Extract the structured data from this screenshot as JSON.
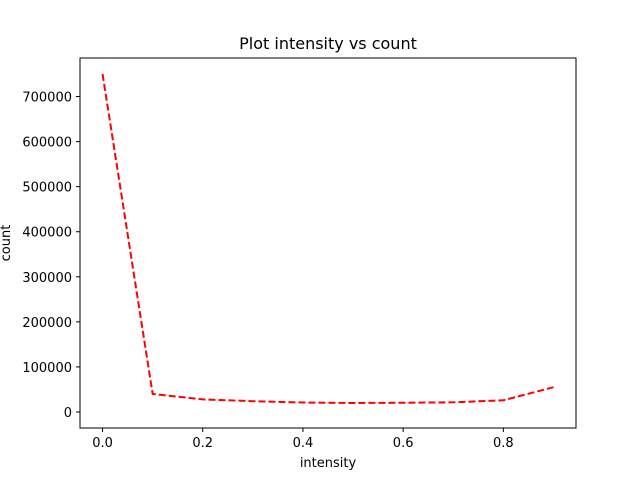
{
  "chart_data": {
    "type": "line",
    "title": "Plot intensity vs count",
    "xlabel": "intensity",
    "ylabel": "count",
    "xlim": [
      -0.045,
      0.945
    ],
    "ylim": [
      -35500,
      785500
    ],
    "xticks": [
      0.0,
      0.2,
      0.4,
      0.6,
      0.8
    ],
    "xtick_labels": [
      "0.0",
      "0.2",
      "0.4",
      "0.6",
      "0.8"
    ],
    "yticks": [
      0,
      100000,
      200000,
      300000,
      400000,
      500000,
      600000,
      700000
    ],
    "ytick_labels": [
      "0",
      "100000",
      "200000",
      "300000",
      "400000",
      "500000",
      "600000",
      "700000"
    ],
    "grid": false,
    "series": [
      {
        "color": "#ff0000",
        "line_style": "dashed",
        "x": [
          0.0,
          0.1,
          0.2,
          0.3,
          0.4,
          0.5,
          0.6,
          0.7,
          0.8,
          0.9
        ],
        "y": [
          750000,
          40000,
          28000,
          24000,
          21000,
          20000,
          20500,
          21500,
          26000,
          55000
        ]
      }
    ]
  }
}
